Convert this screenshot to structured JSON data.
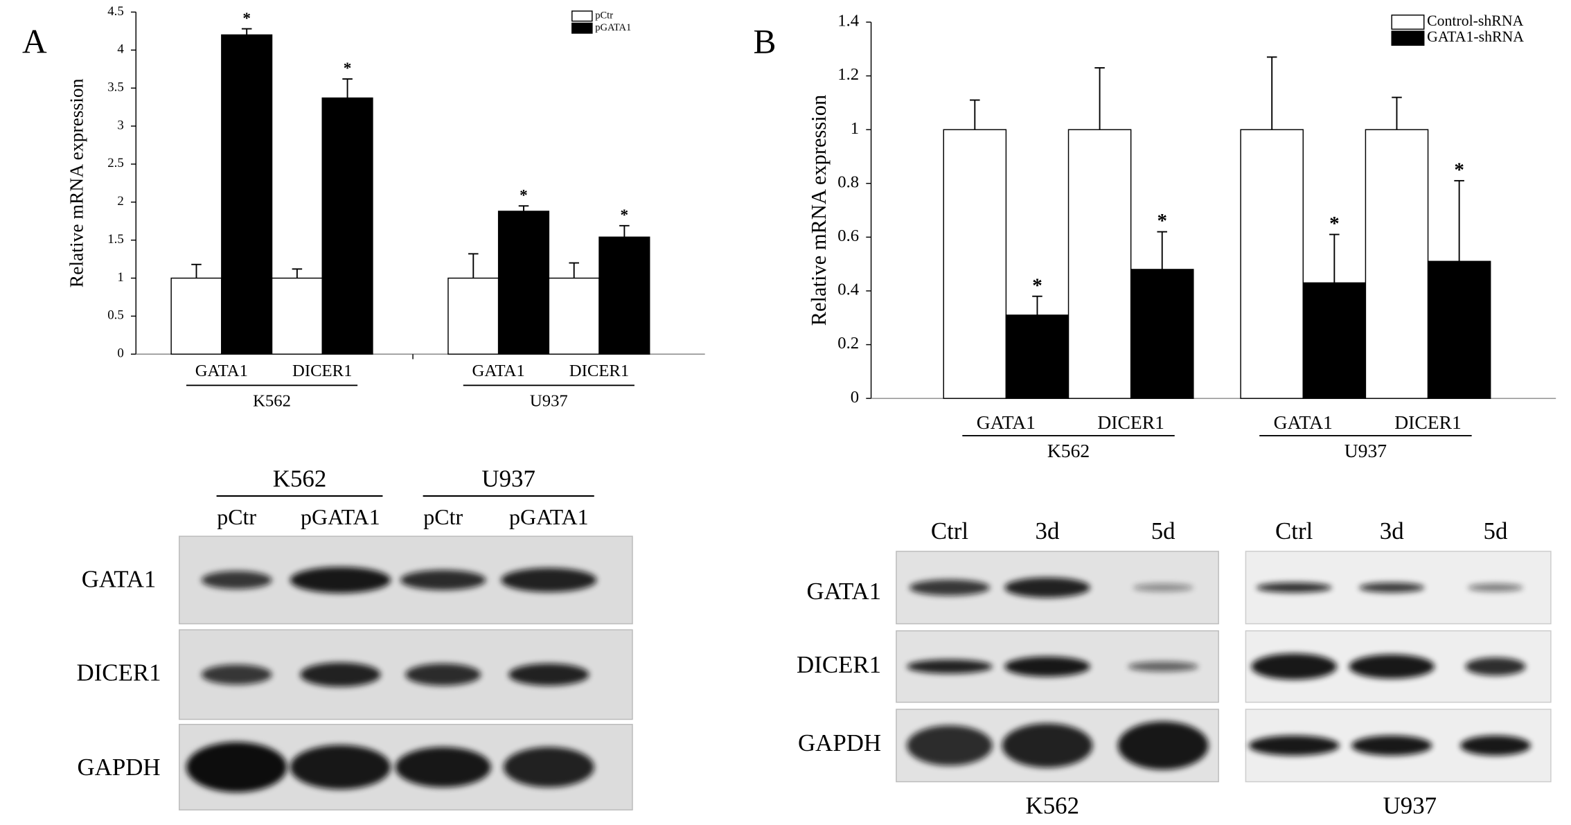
{
  "chart_data": [
    {
      "type": "bar",
      "panel": "A",
      "y_label": "Relative mRNA expression",
      "categories": [
        "GATA1",
        "DICER1",
        "GATA1",
        "DICER1"
      ],
      "groups": [
        "K562",
        "U937"
      ],
      "series": [
        {
          "name": "pCtr",
          "color": "#ffffff",
          "values": [
            1,
            1,
            1,
            1
          ],
          "errors": [
            0.18,
            0.12,
            0.32,
            0.2
          ]
        },
        {
          "name": "pGATA1",
          "color": "#000000",
          "values": [
            4.2,
            3.37,
            1.88,
            1.54
          ],
          "errors": [
            0.08,
            0.25,
            0.07,
            0.15
          ],
          "annotations": [
            "*",
            "*",
            "*",
            "*"
          ]
        }
      ],
      "ylim": [
        0,
        4.5
      ],
      "yticks": [
        0,
        0.5,
        1,
        1.5,
        2,
        2.5,
        3,
        3.5,
        4,
        4.5
      ],
      "legend": "top-right"
    },
    {
      "type": "bar",
      "panel": "B",
      "y_label": "Relative mRNA expression",
      "categories": [
        "GATA1",
        "DICER1",
        "GATA1",
        "DICER1"
      ],
      "groups": [
        "K562",
        "U937"
      ],
      "series": [
        {
          "name": "Control-shRNA",
          "color": "#ffffff",
          "values": [
            1,
            1,
            1,
            1
          ],
          "errors": [
            0.11,
            0.23,
            0.27,
            0.12
          ]
        },
        {
          "name": "GATA1-shRNA",
          "color": "#000000",
          "values": [
            0.31,
            0.48,
            0.43,
            0.51
          ],
          "errors": [
            0.07,
            0.14,
            0.18,
            0.3
          ],
          "annotations": [
            "*",
            "*",
            "*",
            "*"
          ]
        }
      ],
      "ylim": [
        0,
        1.4
      ],
      "yticks": [
        0,
        0.2,
        0.4,
        0.6,
        0.8,
        1,
        1.2,
        1.4
      ],
      "legend": "top-right"
    }
  ],
  "blots": [
    {
      "groups": [
        "K562",
        "U937"
      ],
      "lanes": [
        "pCtr",
        "pGATA1",
        "pCtr",
        "pGATA1"
      ],
      "rows": [
        "GATA1",
        "DICER1",
        "GAPDH"
      ]
    },
    {
      "panels": [
        "K562",
        "U937"
      ],
      "lanes": [
        "Ctrl",
        "3d",
        "5d",
        "Ctrl",
        "3d",
        "5d"
      ],
      "rows": [
        "GATA1",
        "DICER1",
        "GAPDH"
      ]
    }
  ]
}
